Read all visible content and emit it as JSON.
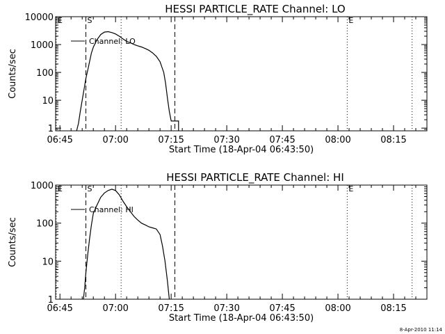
{
  "footer": {
    "timestamp": "8-Apr-2010 11:14"
  },
  "chart_data": [
    {
      "type": "line",
      "title": "HESSI PARTICLE_RATE Channel: LO",
      "xlabel": "Start Time (18-Apr-04 06:43:50)",
      "ylabel": "Counts/sec",
      "y_scale": "log",
      "xlim": [
        "06:43:50",
        "08:24:00"
      ],
      "ylim": [
        0.8,
        10000
      ],
      "xticks": [
        "06:45",
        "07:00",
        "07:15",
        "07:30",
        "07:45",
        "08:00",
        "08:15"
      ],
      "yticks": [
        1,
        10,
        100,
        1000,
        10000
      ],
      "ytick_labels": [
        "1",
        "10",
        "100",
        "1000",
        "10000"
      ],
      "legend": {
        "position": "top-left",
        "label": "Channel: LO"
      },
      "markers": [
        {
          "time": "06:44:00",
          "label": "E",
          "style": "dotted"
        },
        {
          "time": "06:52:00",
          "label": "S",
          "style": "dashed"
        },
        {
          "time": "07:01:30",
          "label": "",
          "style": "dotted"
        },
        {
          "time": "07:16:00",
          "label": "",
          "style": "dashed"
        },
        {
          "time": "08:02:30",
          "label": "E",
          "style": "dotted"
        },
        {
          "time": "08:20:00",
          "label": "",
          "style": "dotted"
        }
      ],
      "series": [
        {
          "name": "Channel: LO",
          "x": [
            "06:49:30",
            "06:50:00",
            "06:50:30",
            "06:51:00",
            "06:51:30",
            "06:52:00",
            "06:52:30",
            "06:53:00",
            "06:53:30",
            "06:54:00",
            "06:55:00",
            "06:56:00",
            "06:57:00",
            "06:58:00",
            "06:59:00",
            "07:00:00",
            "07:01:00",
            "07:02:00",
            "07:03:00",
            "07:04:00",
            "07:05:00",
            "07:06:00",
            "07:07:00",
            "07:08:00",
            "07:09:00",
            "07:10:00",
            "07:11:00",
            "07:12:00",
            "07:13:00",
            "07:13:30",
            "07:14:00",
            "07:14:30",
            "07:15:00",
            "07:15:30",
            "07:16:00",
            "07:17:00",
            "07:17:00"
          ],
          "y": [
            0.8,
            1.5,
            4,
            10,
            25,
            60,
            120,
            250,
            500,
            800,
            1500,
            2300,
            2800,
            2900,
            2700,
            2400,
            2000,
            1600,
            1300,
            1150,
            1000,
            900,
            820,
            720,
            620,
            500,
            380,
            240,
            100,
            40,
            12,
            4,
            1.8,
            1.8,
            1.8,
            1.8,
            0.8
          ]
        }
      ]
    },
    {
      "type": "line",
      "title": "HESSI PARTICLE_RATE Channel: HI",
      "xlabel": "Start Time (18-Apr-04 06:43:50)",
      "ylabel": "Counts/sec",
      "y_scale": "log",
      "xlim": [
        "06:43:50",
        "08:24:00"
      ],
      "ylim": [
        1,
        1000
      ],
      "xticks": [
        "06:45",
        "07:00",
        "07:15",
        "07:30",
        "07:45",
        "08:00",
        "08:15"
      ],
      "yticks": [
        1,
        10,
        100,
        1000
      ],
      "ytick_labels": [
        "1",
        "10",
        "100",
        "1000"
      ],
      "legend": {
        "position": "top-left",
        "label": "Channel: HI"
      },
      "markers": [
        {
          "time": "06:44:00",
          "label": "E",
          "style": "dotted"
        },
        {
          "time": "06:52:00",
          "label": "S",
          "style": "dashed"
        },
        {
          "time": "07:01:30",
          "label": "",
          "style": "dotted"
        },
        {
          "time": "07:16:00",
          "label": "",
          "style": "dashed"
        },
        {
          "time": "08:02:30",
          "label": "E",
          "style": "dotted"
        },
        {
          "time": "08:20:00",
          "label": "",
          "style": "dotted"
        }
      ],
      "series": [
        {
          "name": "Channel: HI",
          "x": [
            "06:51:20",
            "06:51:40",
            "06:52:00",
            "06:52:30",
            "06:53:00",
            "06:53:30",
            "06:54:00",
            "06:55:00",
            "06:56:00",
            "06:57:00",
            "06:58:00",
            "06:59:00",
            "07:00:00",
            "07:01:00",
            "07:02:00",
            "07:03:00",
            "07:04:00",
            "07:05:00",
            "07:06:00",
            "07:07:00",
            "07:08:00",
            "07:09:00",
            "07:10:00",
            "07:11:00",
            "07:12:00",
            "07:12:40",
            "07:13:20",
            "07:14:00",
            "07:14:30"
          ],
          "y": [
            1,
            2,
            5,
            15,
            40,
            90,
            180,
            300,
            480,
            620,
            720,
            780,
            720,
            560,
            380,
            270,
            200,
            150,
            120,
            100,
            90,
            80,
            75,
            70,
            50,
            25,
            10,
            3,
            1
          ]
        }
      ]
    }
  ]
}
